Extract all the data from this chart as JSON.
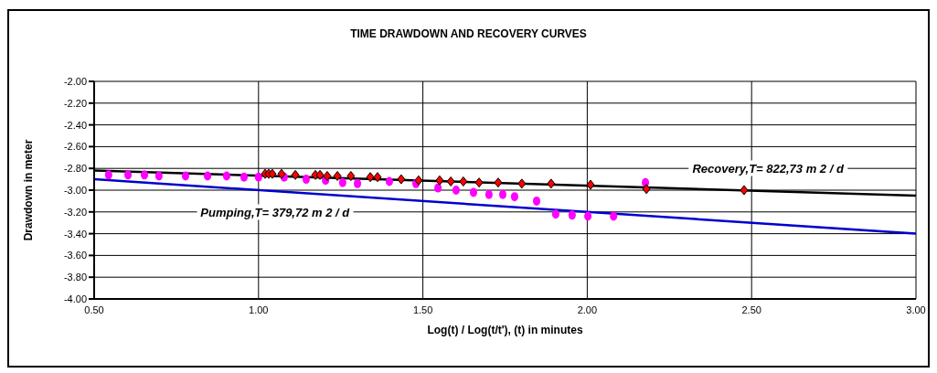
{
  "chart_data": {
    "type": "scatter",
    "title": "TIME DRAWDOWN AND RECOVERY CURVES",
    "xlabel": "Log(t) / Log(t/t'), (t) in minutes",
    "ylabel": "Drawdown in meter",
    "xlim": [
      0.5,
      3.0
    ],
    "ylim": [
      -4.0,
      -2.0
    ],
    "xticks": [
      {
        "value": 0.5,
        "label": "0.50"
      },
      {
        "value": 1.0,
        "label": "1.00"
      },
      {
        "value": 1.5,
        "label": "1.50"
      },
      {
        "value": 2.0,
        "label": "2.00"
      },
      {
        "value": 2.5,
        "label": "2.50"
      },
      {
        "value": 3.0,
        "label": "3.00"
      }
    ],
    "yticks": [
      {
        "value": -4.0,
        "label": "-4.00"
      },
      {
        "value": -3.8,
        "label": "-3.80"
      },
      {
        "value": -3.6,
        "label": "-3.60"
      },
      {
        "value": -3.4,
        "label": "-3.40"
      },
      {
        "value": -3.2,
        "label": "-3.20"
      },
      {
        "value": -3.0,
        "label": "-3.00"
      },
      {
        "value": -2.8,
        "label": "-2.80"
      },
      {
        "value": -2.6,
        "label": "-2.60"
      },
      {
        "value": -2.4,
        "label": "-2.40"
      },
      {
        "value": -2.2,
        "label": "-2.20"
      },
      {
        "value": -2.0,
        "label": "-2.00"
      }
    ],
    "grid": true,
    "legend": false,
    "series": [
      {
        "color": "#ff00ff",
        "marker": "circle",
        "x": [
          0.544,
          0.603,
          0.653,
          0.697,
          0.778,
          0.845,
          0.903,
          0.956,
          1.0,
          1.078,
          1.145,
          1.204,
          1.256,
          1.301,
          1.398,
          1.479,
          1.546,
          1.601,
          1.654,
          1.701,
          1.743,
          1.779,
          1.846,
          1.904,
          1.954,
          2.002,
          2.08,
          2.177
        ],
        "values": [
          -2.86,
          -2.86,
          -2.86,
          -2.87,
          -2.87,
          -2.87,
          -2.87,
          -2.88,
          -2.88,
          -2.88,
          -2.9,
          -2.91,
          -2.93,
          -2.94,
          -2.92,
          -2.94,
          -2.98,
          -3.0,
          -3.02,
          -3.04,
          -3.04,
          -3.06,
          -3.1,
          -3.22,
          -3.23,
          -3.24,
          -3.24,
          -2.93
        ]
      },
      {
        "color": "#ff0000",
        "marker": "diamond",
        "x": [
          1.02,
          1.031,
          1.042,
          1.07,
          1.112,
          1.173,
          1.187,
          1.209,
          1.24,
          1.281,
          1.34,
          1.362,
          1.434,
          1.487,
          1.551,
          1.585,
          1.623,
          1.671,
          1.729,
          1.801,
          1.89,
          2.01,
          2.18,
          2.477
        ],
        "values": [
          -2.85,
          -2.85,
          -2.85,
          -2.85,
          -2.86,
          -2.86,
          -2.86,
          -2.87,
          -2.87,
          -2.87,
          -2.88,
          -2.88,
          -2.9,
          -2.91,
          -2.91,
          -2.92,
          -2.92,
          -2.93,
          -2.93,
          -2.94,
          -2.94,
          -2.95,
          -2.99,
          -3.0
        ]
      },
      {
        "type": "line",
        "color": "#000000",
        "marker": "none",
        "x": [
          0.5,
          3.0
        ],
        "values": [
          -2.82,
          -3.05
        ]
      },
      {
        "type": "line",
        "color": "#0000cc",
        "marker": "none",
        "x": [
          0.5,
          3.0
        ],
        "values": [
          -2.9,
          -3.4
        ]
      }
    ],
    "annotations": [
      "Pumping,T= 379,72 m 2 / d",
      "Recovery,T= 822,73 m 2 / d"
    ]
  }
}
